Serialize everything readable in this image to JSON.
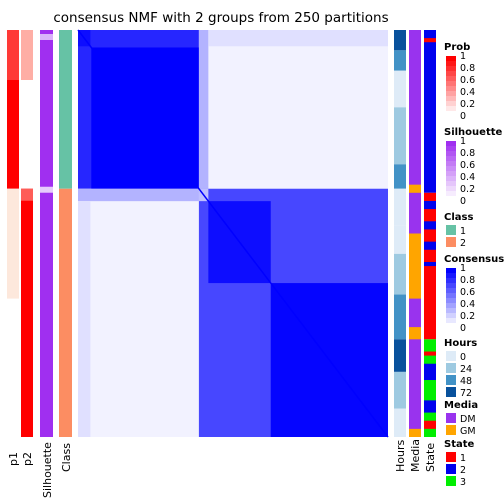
{
  "title": "consensus NMF with 2 groups from 250 partitions",
  "colors": {
    "prob_high": "#ff0000",
    "prob_low": "#fde8dc",
    "silhouette": "#a02ff0",
    "class_1": "#66c2a5",
    "class_2": "#fc8d62",
    "consensus_high": "#0000ff",
    "consensus_low": "#ffffff",
    "hours_0": "#deebf7",
    "hours_24": "#9ecae1",
    "hours_48": "#4292c6",
    "hours_72": "#08519c",
    "media_dm": "#9933ee",
    "media_gm": "#ffa500",
    "state_1": "#ff0000",
    "state_2": "#0000ee",
    "state_3": "#00ee00"
  },
  "column_labels": {
    "p1": "p1",
    "p2": "p2",
    "silhouette": "Silhouette",
    "class": "Class",
    "hours": "Hours",
    "media": "Media",
    "state": "State"
  },
  "legends": {
    "prob": {
      "title": "Prob",
      "ticks": [
        "1",
        "0.8",
        "0.6",
        "0.4",
        "0.2",
        "0"
      ]
    },
    "silhouette": {
      "title": "Silhouette",
      "ticks": [
        "1",
        "0.8",
        "0.6",
        "0.4",
        "0.2",
        "0"
      ]
    },
    "class": {
      "title": "Class",
      "items": [
        "1",
        "2"
      ]
    },
    "consensus": {
      "title": "Consensus",
      "ticks": [
        "1",
        "0.8",
        "0.6",
        "0.4",
        "0.2",
        "0"
      ]
    },
    "hours": {
      "title": "Hours",
      "items": [
        "0",
        "24",
        "48",
        "72"
      ]
    },
    "media": {
      "title": "Media",
      "items": [
        "DM",
        "GM"
      ]
    },
    "state": {
      "title": "State",
      "items": [
        "1",
        "2",
        "3"
      ]
    }
  },
  "chart_data": {
    "type": "heatmap",
    "title": "consensus NMF with 2 groups from 250 partitions",
    "groups": 2,
    "partitions": 250,
    "sample_fraction_class_1": 0.39,
    "consensus_blocks": [
      {
        "rows": "class 1",
        "cols": "class 1",
        "sub_blocks": [
          {
            "fraction": 0.11,
            "value": 0.85
          },
          {
            "fraction": 0.89,
            "value": 1.0
          }
        ]
      },
      {
        "rows": "class 2",
        "cols": "class 2",
        "sub_blocks": [
          {
            "fraction": 0.05,
            "value": 0.15
          },
          {
            "fraction": 0.33,
            "value": 0.95
          },
          {
            "fraction": 0.62,
            "value": 0.98
          }
        ]
      },
      {
        "rows": "class 1",
        "cols": "class 2",
        "value": 0.05
      }
    ],
    "row_annotations": [
      "p1",
      "p2",
      "Silhouette",
      "Class"
    ],
    "column_annotations": [
      "Hours",
      "Media",
      "State"
    ],
    "value_range": [
      0,
      1
    ]
  }
}
